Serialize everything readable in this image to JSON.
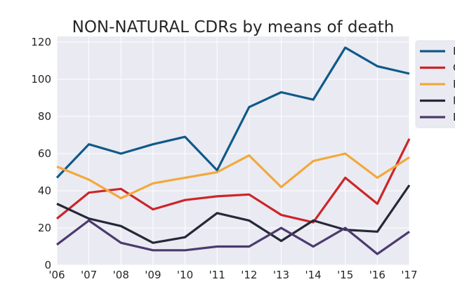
{
  "chart_data": {
    "type": "line",
    "title": "NON-NATURAL CDRs by means of death",
    "xlabel": "",
    "ylabel": "",
    "categories": [
      "'06",
      "'07",
      "'08",
      "'09",
      "'10",
      "'11",
      "'12",
      "'13",
      "'14",
      "'15",
      "'16",
      "'17"
    ],
    "ylim": [
      0,
      123
    ],
    "yticks": [
      0,
      20,
      40,
      60,
      80,
      100,
      120
    ],
    "grid": true,
    "legend_position": "right, outside plot (clipped)",
    "background": "#eaeaf2",
    "series": [
      {
        "name": "",
        "legend_text": "I",
        "color": "#0e5a8a",
        "values": [
          47,
          65,
          60,
          65,
          69,
          51,
          85,
          93,
          89,
          117,
          107,
          103
        ]
      },
      {
        "name": "",
        "legend_text": "C",
        "color": "#cc2529",
        "values": [
          25,
          39,
          41,
          30,
          35,
          37,
          38,
          27,
          23,
          47,
          33,
          68
        ]
      },
      {
        "name": "",
        "legend_text": "I",
        "color": "#f2a93b",
        "values": [
          53,
          46,
          36,
          44,
          47,
          50,
          59,
          42,
          56,
          60,
          47,
          58
        ]
      },
      {
        "name": "",
        "legend_text": "M",
        "color": "#262838",
        "values": [
          33,
          25,
          21,
          12,
          15,
          28,
          24,
          13,
          24,
          19,
          18,
          43
        ]
      },
      {
        "name": "",
        "legend_text": "D",
        "color": "#4c3a6e",
        "values": [
          11,
          24,
          12,
          8,
          8,
          10,
          10,
          20,
          10,
          20,
          6,
          18
        ]
      }
    ]
  }
}
